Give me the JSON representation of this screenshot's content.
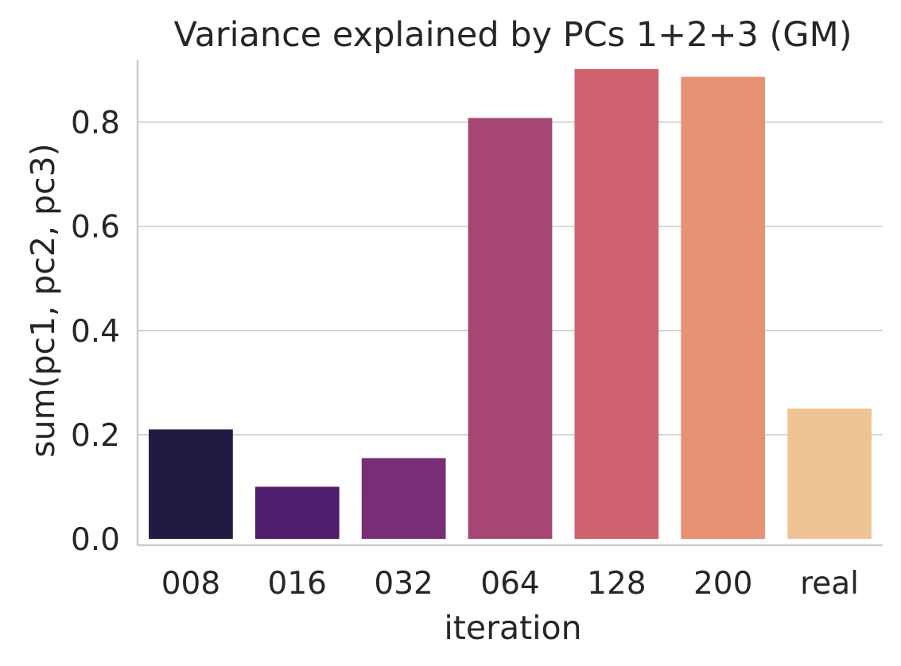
{
  "chart_data": {
    "type": "bar",
    "title": "Variance explained by PCs 1+2+3 (GM)",
    "xlabel": "iteration",
    "ylabel": "sum(pc1, pc2, pc3)",
    "categories": [
      "008",
      "016",
      "032",
      "064",
      "128",
      "200",
      "real"
    ],
    "values": [
      0.21,
      0.1,
      0.155,
      0.808,
      0.902,
      0.887,
      0.25
    ],
    "colors": [
      "#221a42",
      "#501d6c",
      "#782e77",
      "#a64675",
      "#d06270",
      "#e79275",
      "#eec494"
    ],
    "ylim": [
      0,
      0.92
    ],
    "yticks": [
      "0.0",
      "0.2",
      "0.4",
      "0.6",
      "0.8"
    ],
    "grid": "horizontal",
    "grid_color": "#cccccc",
    "axis_color": "#cccccc",
    "text_color": "#262626"
  }
}
